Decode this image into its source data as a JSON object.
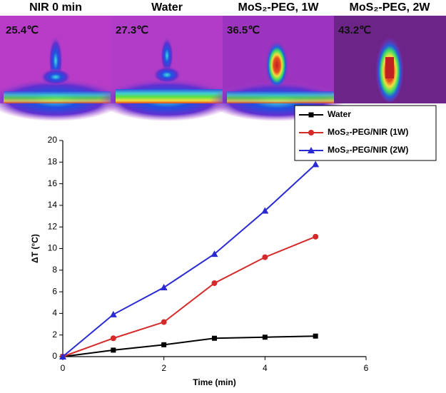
{
  "images": [
    {
      "label": "NIR 0 min",
      "temperature": "25.4℃"
    },
    {
      "label": "Water",
      "temperature": "27.3℃"
    },
    {
      "label": "MoS₂-PEG, 1W",
      "temperature": "36.5℃"
    },
    {
      "label": "MoS₂-PEG, 2W",
      "temperature": "43.2℃"
    }
  ],
  "chart_data": {
    "type": "line",
    "x": [
      0,
      1,
      2,
      3,
      4,
      5
    ],
    "series": [
      {
        "name": "Water",
        "color": "#000000",
        "marker": "square",
        "values": [
          0,
          0.6,
          1.1,
          1.7,
          1.8,
          1.9
        ]
      },
      {
        "name": "MoS₂-PEG/NIR (1W)",
        "color": "#d42a2a",
        "marker": "circle",
        "values": [
          0,
          1.7,
          3.2,
          6.8,
          9.2,
          11.1
        ]
      },
      {
        "name": "MoS₂-PEG/NIR (2W)",
        "color": "#2a2ad4",
        "marker": "triangle",
        "values": [
          0,
          3.9,
          6.4,
          9.5,
          13.5,
          17.8
        ]
      }
    ],
    "xlabel": "Time (min)",
    "ylabel": "ΔT (°C)",
    "xlim": [
      0,
      6
    ],
    "xticks": [
      0,
      2,
      4,
      6
    ],
    "ylim": [
      0,
      20
    ],
    "yticks": [
      0,
      2,
      4,
      6,
      8,
      10,
      12,
      14,
      16,
      18,
      20
    ],
    "legend": "top-right"
  }
}
